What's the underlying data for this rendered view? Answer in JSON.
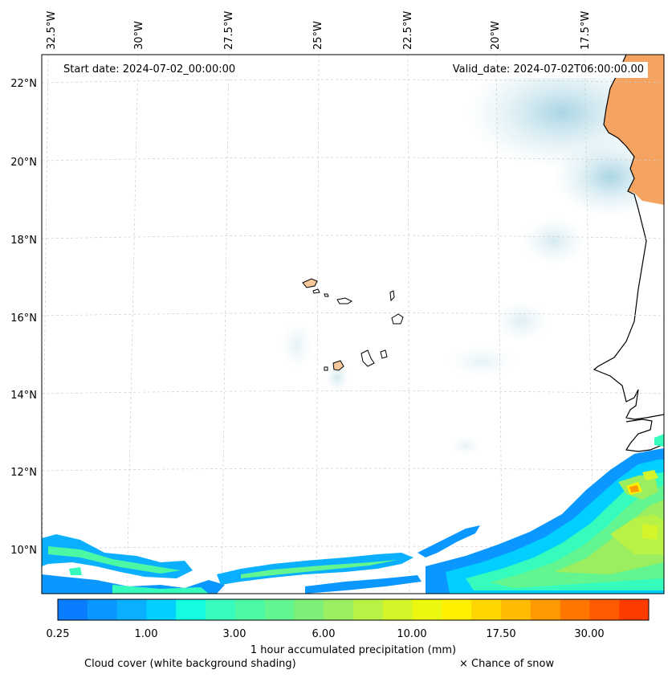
{
  "map": {
    "start_date_label": "Start date: 2024-07-02_00:00:00",
    "valid_date_label": "Valid_date: 2024-07-02T06:00:00.00",
    "lon_labels": [
      "32.5°W",
      "30°W",
      "27.5°W",
      "25°W",
      "22.5°W",
      "20°W",
      "17.5°W"
    ],
    "lat_labels": [
      "22°N",
      "20°N",
      "18°N",
      "16°N",
      "14°N",
      "12°N",
      "10°N"
    ],
    "colors": {
      "land_orange": "#f4a460",
      "island_fill": "#f5c79a",
      "cloud_blue": "#a9d6e5",
      "coastline": "#000000",
      "grid": "#cccccc"
    }
  },
  "colorbar": {
    "title": "1 hour accumulated precipitation (mm)",
    "tick_labels": [
      "0.25",
      "1.00",
      "3.00",
      "6.00",
      "10.00",
      "17.50",
      "30.00"
    ],
    "colors": [
      "#0a7dff",
      "#0a97ff",
      "#0ab0ff",
      "#00cfff",
      "#14fbe1",
      "#35fbbd",
      "#4cf8a4",
      "#62f590",
      "#7ef07a",
      "#9bee5f",
      "#b8f247",
      "#d4f52a",
      "#ecf810",
      "#fff000",
      "#ffd600",
      "#ffbb00",
      "#ff9a00",
      "#ff7700",
      "#ff5a00",
      "#ff3c00"
    ]
  },
  "legend": {
    "cloud_cover": "Cloud cover (white background shading)",
    "snow": "× Chance of snow"
  }
}
